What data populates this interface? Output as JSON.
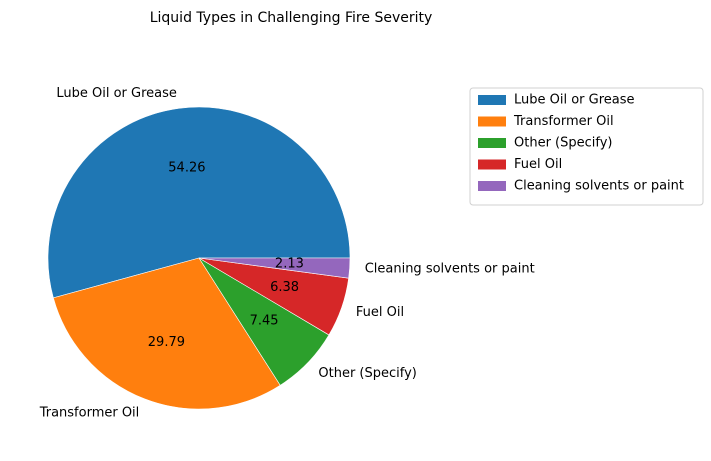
{
  "chart_data": {
    "type": "pie",
    "title": "Liquid Types in Challenging Fire Severity",
    "categories": [
      "Lube Oil or Grease",
      "Transformer Oil",
      "Other (Specify)",
      "Fuel Oil",
      "Cleaning solvents or paint"
    ],
    "values": [
      54.26,
      29.79,
      7.45,
      6.38,
      2.13
    ],
    "data_labels": [
      "54.26",
      "29.79",
      "7.45",
      "6.38",
      "2.13"
    ],
    "colors": [
      "#1f77b4",
      "#ff7f0e",
      "#2ca02c",
      "#d62728",
      "#9467bd"
    ],
    "legend": {
      "placement": "right",
      "entries": [
        "Lube Oil or Grease",
        "Transformer Oil",
        "Other (Specify)",
        "Fuel Oil",
        "Cleaning solvents or paint"
      ]
    }
  }
}
